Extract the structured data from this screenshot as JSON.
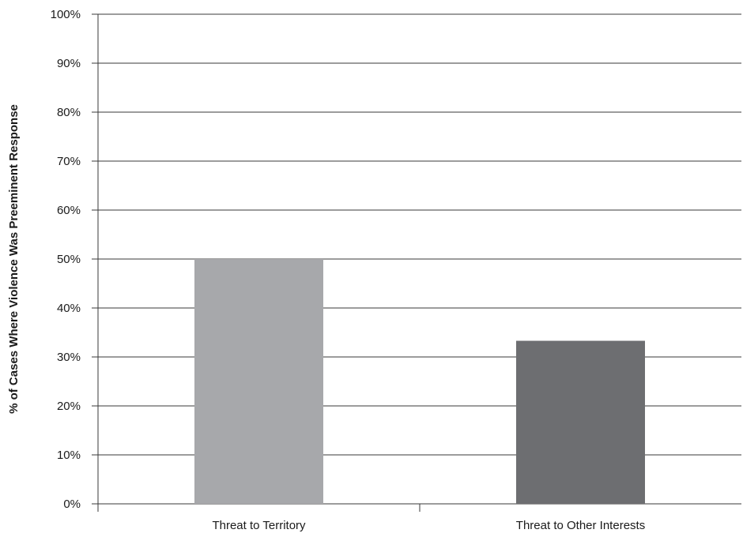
{
  "chart_data": {
    "type": "bar",
    "title": "",
    "xlabel": "",
    "ylabel": "% of Cases Where Violence Was Preeminent Response",
    "categories": [
      "Threat to Territory",
      "Threat to Other Interests"
    ],
    "values": [
      50,
      33.3
    ],
    "bar_colors": [
      "#a7a8ab",
      "#6d6e71"
    ],
    "ylim": [
      0,
      100
    ],
    "y_ticks": [
      0,
      10,
      20,
      30,
      40,
      50,
      60,
      70,
      80,
      90,
      100
    ],
    "y_tick_labels": [
      "0%",
      "10%",
      "20%",
      "30%",
      "40%",
      "50%",
      "60%",
      "70%",
      "80%",
      "90%",
      "100%"
    ],
    "grid": true,
    "legend": "none"
  }
}
